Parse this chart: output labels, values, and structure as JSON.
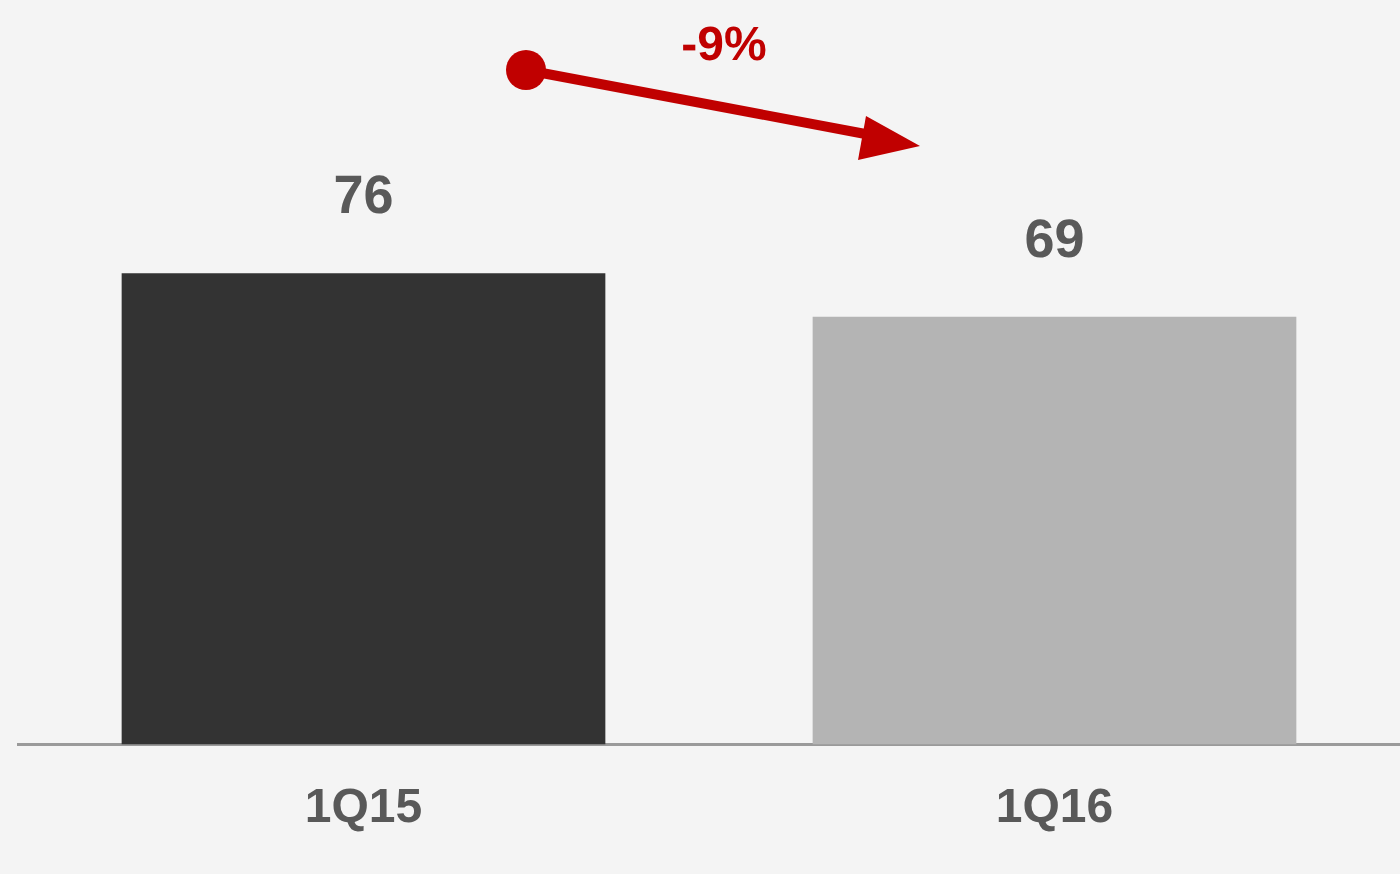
{
  "chart_data": {
    "type": "bar",
    "categories": [
      "1Q15",
      "1Q16"
    ],
    "values": [
      76,
      69
    ],
    "colors": [
      "#333333",
      "#b4b4b4"
    ],
    "data_labels": true,
    "annotations": [
      "-9%"
    ],
    "legend": false,
    "grid": false
  }
}
